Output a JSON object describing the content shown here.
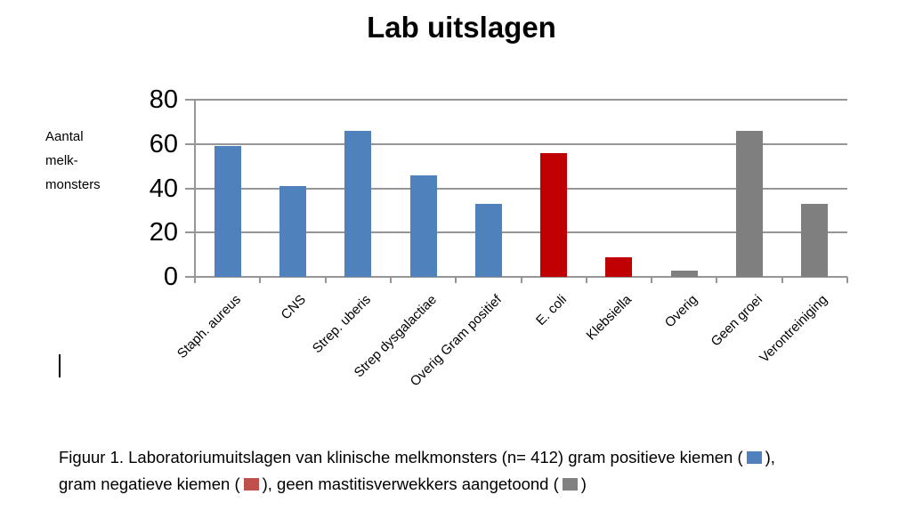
{
  "figure": {
    "title": "Lab uitslagen",
    "y_axis_label_lines": [
      "Aantal",
      "melk-",
      "monsters"
    ]
  },
  "chart_data": {
    "type": "bar",
    "title": "Lab uitslagen",
    "ylabel": "Aantal melk-monsters",
    "xlabel": "",
    "ylim": [
      0,
      80
    ],
    "yticks": [
      0,
      20,
      40,
      60,
      80
    ],
    "grid": true,
    "legend_position": "caption-below-chart",
    "categories": [
      "Staph. aureus",
      "CNS",
      "Strep. uberis",
      "Strep dysgalactiae",
      "Overig Gram positief",
      "E. coli",
      "Klebsiella",
      "Overig",
      "Geen groei",
      "Verontreiniging"
    ],
    "values": [
      59,
      41,
      66,
      46,
      33,
      56,
      9,
      3,
      66,
      33
    ],
    "groups": [
      "gram_positief",
      "gram_positief",
      "gram_positief",
      "gram_positief",
      "gram_positief",
      "gram_negatief",
      "gram_negatief",
      "geen_verwekkers",
      "geen_verwekkers",
      "geen_verwekkers"
    ],
    "group_colors": {
      "gram_positief": "#4F81BD",
      "gram_negatief": "#C00000",
      "geen_verwekkers": "#7F7F7F"
    },
    "group_labels": {
      "gram_positief": "gram positieve kiemen",
      "gram_negatief": "gram negatieve kiemen",
      "geen_verwekkers": "geen mastitisverwekkers aangetoond"
    },
    "n_total": "412"
  },
  "caption": {
    "line1_part1": "Figuur 1. Laboratoriumuitslagen van klinische melkmonsters (n= 412) gram positieve kiemen (",
    "line1_part2": "),",
    "line2_part1": "gram negatieve kiemen (",
    "line2_part2": "), geen mastitisverwekkers aangetoond (",
    "line2_part3": ")",
    "swatch_colors": {
      "blue": "#4F81BD",
      "red": "#C0504D",
      "gray": "#808080"
    }
  },
  "colors": {
    "gridline": "#969696",
    "text": "#000000",
    "background": "#FFFFFF"
  }
}
